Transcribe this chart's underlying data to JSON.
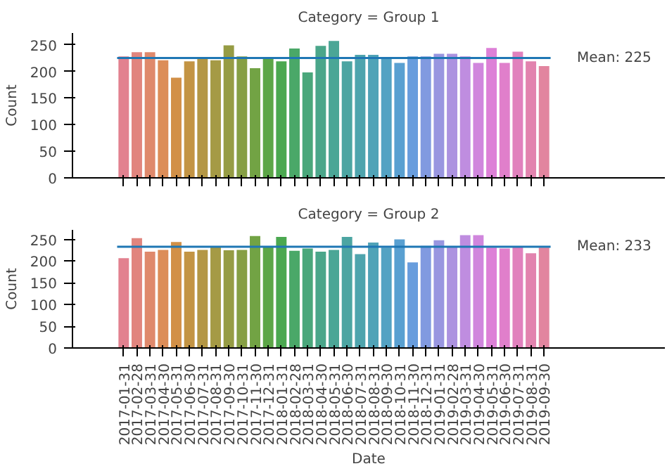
{
  "chart_data": [
    {
      "type": "bar",
      "title": "Category = Group 1",
      "ylabel": "Count",
      "tick_labels": "y",
      "categories": [
        "2017-01-31",
        "2017-02-28",
        "2017-03-31",
        "2017-04-30",
        "2017-05-31",
        "2017-06-30",
        "2017-07-31",
        "2017-08-31",
        "2017-09-30",
        "2017-10-31",
        "2017-11-30",
        "2017-12-31",
        "2018-01-31",
        "2018-02-28",
        "2018-03-31",
        "2018-04-30",
        "2018-05-31",
        "2018-06-30",
        "2018-07-31",
        "2018-08-31",
        "2018-09-30",
        "2018-10-31",
        "2018-11-30",
        "2018-12-31",
        "2019-01-31",
        "2019-02-28",
        "2019-03-31",
        "2019-04-30",
        "2019-05-31",
        "2019-06-30",
        "2019-07-31",
        "2019-08-31",
        "2019-09-30"
      ],
      "values": [
        228,
        236,
        236,
        221,
        188,
        219,
        226,
        221,
        249,
        228,
        206,
        226,
        219,
        243,
        198,
        248,
        257,
        219,
        231,
        231,
        224,
        216,
        228,
        228,
        233,
        233,
        228,
        216,
        244,
        216,
        237,
        219,
        210
      ],
      "colors": [
        "#e2818f",
        "#e1857e",
        "#df896c",
        "#dc8d58",
        "#d29047",
        "#c39444",
        "#b49745",
        "#a59a45",
        "#969c44",
        "#869f44",
        "#72a344",
        "#5ca647",
        "#4ba850",
        "#4aa868",
        "#4aa77b",
        "#4aa68a",
        "#4ba696",
        "#4ca5a2",
        "#4ea4ad",
        "#50a3b7",
        "#53a2c3",
        "#59a0d1",
        "#689ddd",
        "#819ae0",
        "#9996e0",
        "#ac92e0",
        "#bf8de0",
        "#d086dd",
        "#dd80d7",
        "#e07fcb",
        "#e181bd",
        "#e283ae",
        "#e2859f"
      ],
      "ylim": [
        0,
        272
      ],
      "yticks": [
        0,
        50,
        100,
        150,
        200,
        250
      ],
      "ref_lines": [
        {
          "axis": "y",
          "value": 225,
          "label": "Mean: 225",
          "color": "#1f77b4"
        }
      ]
    },
    {
      "type": "bar",
      "title": "Category = Group 2",
      "ylabel": "Count",
      "xlabel": "Date",
      "categories": [
        "2017-01-31",
        "2017-02-28",
        "2017-03-31",
        "2017-04-30",
        "2017-05-31",
        "2017-06-30",
        "2017-07-31",
        "2017-08-31",
        "2017-09-30",
        "2017-10-31",
        "2017-11-30",
        "2017-12-31",
        "2018-01-31",
        "2018-02-28",
        "2018-03-31",
        "2018-04-30",
        "2018-05-31",
        "2018-06-30",
        "2018-07-31",
        "2018-08-31",
        "2018-09-30",
        "2018-10-31",
        "2018-11-30",
        "2018-12-31",
        "2019-01-31",
        "2019-02-28",
        "2019-03-31",
        "2019-04-30",
        "2019-05-31",
        "2019-06-30",
        "2019-07-31",
        "2019-08-31",
        "2019-09-30"
      ],
      "values": [
        207,
        253,
        222,
        226,
        244,
        222,
        226,
        234,
        225,
        226,
        258,
        234,
        256,
        224,
        229,
        222,
        226,
        256,
        216,
        243,
        231,
        250,
        197,
        235,
        248,
        234,
        260,
        260,
        231,
        229,
        234,
        218,
        231
      ],
      "colors": [
        "#e2818f",
        "#e1857e",
        "#df896c",
        "#dc8d58",
        "#d29047",
        "#c39444",
        "#b49745",
        "#a59a45",
        "#969c44",
        "#869f44",
        "#72a344",
        "#5ca647",
        "#4ba850",
        "#4aa868",
        "#4aa77b",
        "#4aa68a",
        "#4ba696",
        "#4ca5a2",
        "#4ea4ad",
        "#50a3b7",
        "#53a2c3",
        "#59a0d1",
        "#689ddd",
        "#819ae0",
        "#9996e0",
        "#ac92e0",
        "#bf8de0",
        "#d086dd",
        "#dd80d7",
        "#e07fcb",
        "#e181bd",
        "#e283ae",
        "#e2859f"
      ],
      "ylim": [
        0,
        272
      ],
      "yticks": [
        0,
        50,
        100,
        150,
        200,
        250
      ],
      "ref_lines": [
        {
          "axis": "y",
          "value": 233,
          "label": "Mean: 233",
          "color": "#1f77b4"
        }
      ]
    }
  ]
}
